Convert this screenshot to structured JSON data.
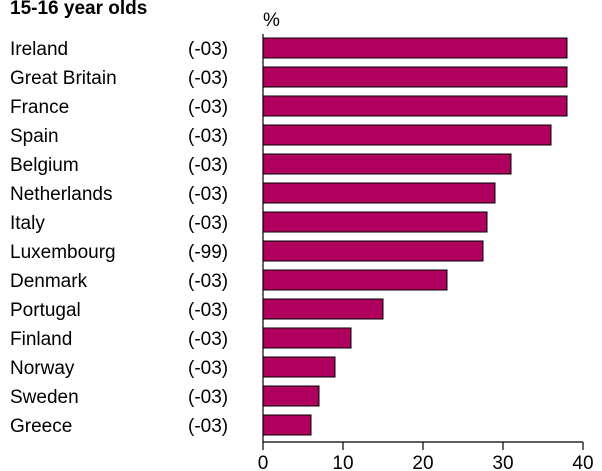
{
  "chart_data": {
    "type": "bar",
    "orientation": "horizontal",
    "title": "15-16 year olds",
    "ylabel_unit": "%",
    "categories": [
      "Ireland",
      "Great Britain",
      "France",
      "Spain",
      "Belgium",
      "Netherlands",
      "Italy",
      "Luxembourg",
      "Denmark",
      "Portugal",
      "Finland",
      "Norway",
      "Sweden",
      "Greece"
    ],
    "years": [
      "(-03)",
      "(-03)",
      "(-03)",
      "(-03)",
      "(-03)",
      "(-03)",
      "(-03)",
      "(-99)",
      "(-03)",
      "(-03)",
      "(-03)",
      "(-03)",
      "(-03)",
      "(-03)"
    ],
    "values": [
      38,
      38,
      38,
      36,
      31,
      29,
      28,
      27.5,
      23,
      15,
      11,
      9,
      7,
      6
    ],
    "xlim": [
      0,
      40
    ],
    "xticks": [
      0,
      10,
      20,
      30,
      40
    ],
    "grid": false,
    "bar_color": "#b0005e",
    "bar_edge_color": "#000000"
  }
}
